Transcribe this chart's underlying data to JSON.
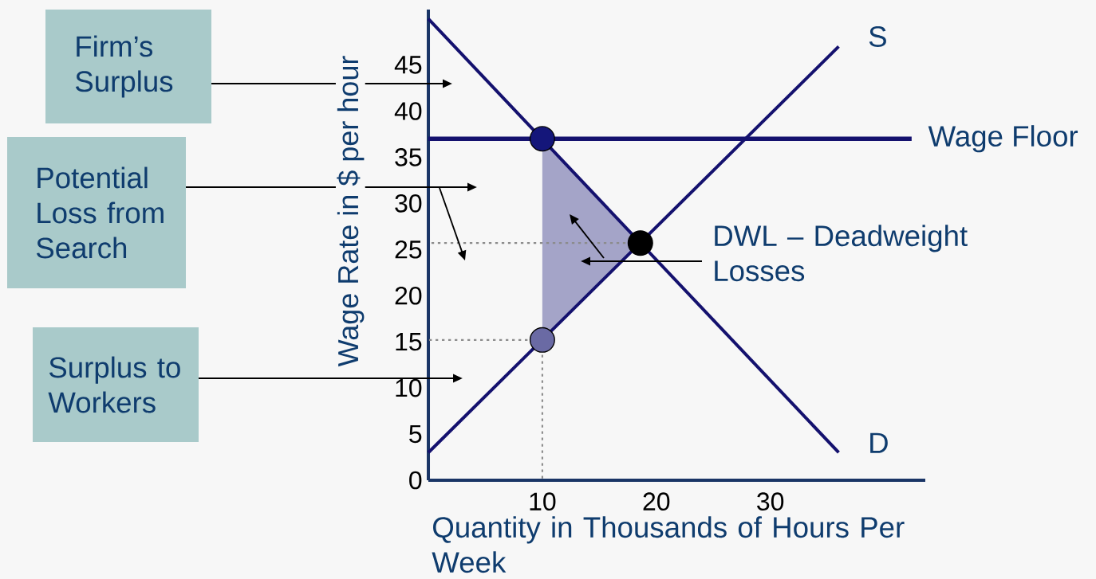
{
  "chart_data": {
    "type": "line",
    "xlabel": "Quantity in Thousands of Hours Per Week",
    "ylabel": "Wage Rate in $ per hour",
    "xlim": [
      0,
      43.6
    ],
    "ylim": [
      0,
      51
    ],
    "xticks": [
      10,
      20,
      30
    ],
    "yticks": [
      0,
      5,
      10,
      15,
      20,
      25,
      30,
      35,
      40,
      45
    ],
    "series": [
      {
        "name": "S",
        "color": "#14116e",
        "x": [
          0,
          36
        ],
        "values": [
          3,
          47
        ]
      },
      {
        "name": "D",
        "color": "#14116e",
        "x": [
          0,
          36
        ],
        "values": [
          50,
          3
        ]
      },
      {
        "line_style": "dotted",
        "color": "#8c8c8c",
        "x": [
          17.3,
          0
        ],
        "values": [
          25.7,
          25.7
        ]
      },
      {
        "line_style": "dotted",
        "color": "#8c8c8c",
        "x": [
          8.7,
          0
        ],
        "values": [
          15.2,
          15.2
        ]
      },
      {
        "line_style": "dotted",
        "color": "#8c8c8c",
        "x": [
          10,
          10
        ],
        "values": [
          13.6,
          0
        ]
      },
      {
        "type": "scatter",
        "marker": "circle",
        "x": [
          10,
          18.6,
          10
        ],
        "values": [
          37,
          25.7,
          15.2
        ],
        "colors": [
          "#14167a",
          "#000000",
          "#6a6aa4"
        ]
      }
    ],
    "ref_lines": [
      {
        "axis": "y",
        "value": 37,
        "label": "Wage Floor",
        "color": "#14116e"
      }
    ],
    "annotations": [
      "Firm’s Surplus",
      "Potential Loss from Search",
      "Surplus to Workers",
      "DWL – Deadweight Losses"
    ]
  }
}
